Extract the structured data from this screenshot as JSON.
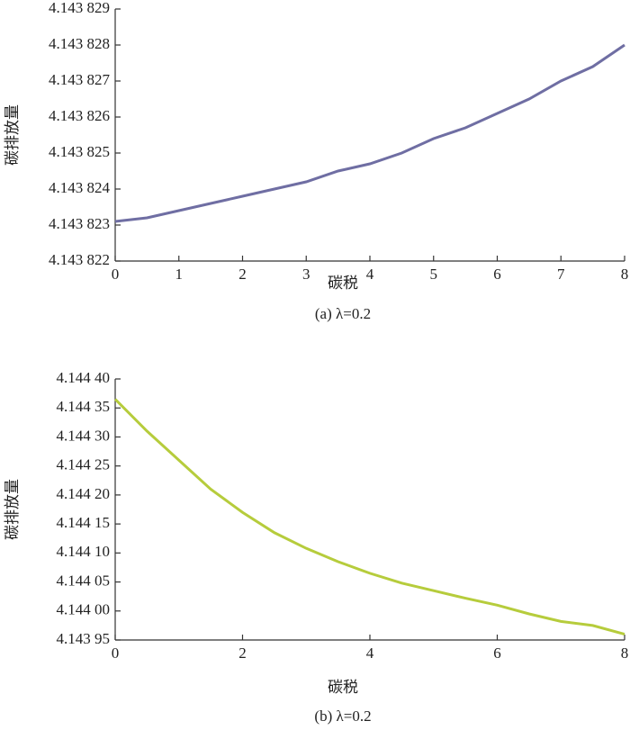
{
  "chart_data": [
    {
      "type": "line",
      "caption": "(a) λ=0.2",
      "xlabel": "碳税",
      "ylabel": "碳排放量",
      "x": [
        0,
        0.5,
        1,
        1.5,
        2,
        2.5,
        3,
        3.5,
        4,
        4.5,
        5,
        5.5,
        6,
        6.5,
        7,
        7.5,
        8
      ],
      "series": [
        {
          "color": "#6f6ea3",
          "values": [
            4.1438231,
            4.1438232,
            4.1438234,
            4.1438236,
            4.1438238,
            4.143824,
            4.1438242,
            4.1438245,
            4.1438247,
            4.143825,
            4.1438254,
            4.1438257,
            4.1438261,
            4.1438265,
            4.143827,
            4.1438274,
            4.143828
          ]
        }
      ],
      "xlim": [
        0,
        8
      ],
      "xticks": [
        0,
        1,
        2,
        3,
        4,
        5,
        6,
        7,
        8
      ],
      "ylim": [
        4.143822,
        4.143829
      ],
      "yticks": [
        {
          "value": 4.143822,
          "label": "4.143 822"
        },
        {
          "value": 4.143823,
          "label": "4.143 823"
        },
        {
          "value": 4.143824,
          "label": "4.143 824"
        },
        {
          "value": 4.143825,
          "label": "4.143 825"
        },
        {
          "value": 4.143826,
          "label": "4.143 826"
        },
        {
          "value": 4.143827,
          "label": "4.143 827"
        },
        {
          "value": 4.143828,
          "label": "4.143 828"
        },
        {
          "value": 4.143829,
          "label": "4.143 829"
        }
      ]
    },
    {
      "type": "line",
      "caption": "(b) λ=0.2",
      "xlabel": "碳税",
      "ylabel": "碳排放量",
      "x": [
        0,
        0.5,
        1,
        1.5,
        2,
        2.5,
        3,
        3.5,
        4,
        4.5,
        5,
        5.5,
        6,
        6.5,
        7,
        7.5,
        8
      ],
      "series": [
        {
          "color": "#b6cc3c",
          "values": [
            4.144365,
            4.14431,
            4.14426,
            4.14421,
            4.14417,
            4.144135,
            4.144108,
            4.144085,
            4.144065,
            4.144048,
            4.144035,
            4.144022,
            4.14401,
            4.143995,
            4.143982,
            4.143975,
            4.14396
          ]
        }
      ],
      "xlim": [
        0,
        8
      ],
      "xticks": [
        0,
        2,
        4,
        6,
        8
      ],
      "ylim": [
        4.14395,
        4.1444
      ],
      "yticks": [
        {
          "value": 4.14395,
          "label": "4.143 95"
        },
        {
          "value": 4.144,
          "label": "4.144 00"
        },
        {
          "value": 4.14405,
          "label": "4.144 05"
        },
        {
          "value": 4.1441,
          "label": "4.144 10"
        },
        {
          "value": 4.14415,
          "label": "4.144 15"
        },
        {
          "value": 4.1442,
          "label": "4.144 20"
        },
        {
          "value": 4.14425,
          "label": "4.144 25"
        },
        {
          "value": 4.1443,
          "label": "4.144 30"
        },
        {
          "value": 4.14435,
          "label": "4.144 35"
        },
        {
          "value": 4.1444,
          "label": "4.144 40"
        }
      ]
    }
  ]
}
